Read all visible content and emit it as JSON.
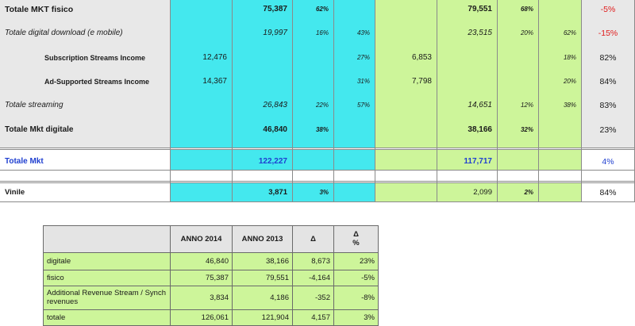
{
  "top_table": {
    "rows": [
      {
        "label": "Totale MKT fisico",
        "c1": "",
        "c2": "75,387",
        "c3": "62%",
        "c4": "",
        "c5": "",
        "c6": "79,551",
        "c7": "68%",
        "c8": "",
        "c9": "-5%"
      },
      {
        "label": "Totale digital download  (e mobile)",
        "c1": "",
        "c2": "19,997",
        "c3": "16%",
        "c4": "43%",
        "c5": "",
        "c6": "23,515",
        "c7": "20%",
        "c8": "62%",
        "c9": "-15%"
      },
      {
        "label": "Subscription Streams Income",
        "c1": "12,476",
        "c2": "",
        "c3": "",
        "c4": "27%",
        "c5": "6,853",
        "c6": "",
        "c7": "",
        "c8": "18%",
        "c9": "82%"
      },
      {
        "label": "Ad-Supported Streams Income",
        "c1": "14,367",
        "c2": "",
        "c3": "",
        "c4": "31%",
        "c5": "7,798",
        "c6": "",
        "c7": "",
        "c8": "20%",
        "c9": "84%"
      },
      {
        "label": "Totale streaming",
        "c1": "",
        "c2": "26,843",
        "c3": "22%",
        "c4": "57%",
        "c5": "",
        "c6": "14,651",
        "c7": "12%",
        "c8": "38%",
        "c9": "83%"
      },
      {
        "label": "Totale Mkt digitale",
        "c1": "",
        "c2": "46,840",
        "c3": "38%",
        "c4": "",
        "c5": "",
        "c6": "38,166",
        "c7": "32%",
        "c8": "",
        "c9": "23%"
      },
      {
        "label": "Totale Mkt",
        "c1": "",
        "c2": "122,227",
        "c3": "",
        "c4": "",
        "c5": "",
        "c6": "117,717",
        "c7": "",
        "c8": "",
        "c9": "4%"
      },
      {
        "label": "Vinile",
        "c1": "",
        "c2": "3,871",
        "c3": "3%",
        "c4": "",
        "c5": "",
        "c6": "2,099",
        "c7": "2%",
        "c8": "",
        "c9": "84%"
      }
    ]
  },
  "bottom_table": {
    "headers": [
      "",
      "ANNO 2014",
      "ANNO 2013",
      "Δ",
      "Δ\n%"
    ],
    "rows": [
      [
        "digitale",
        "46,840",
        "38,166",
        "8,673",
        "23%"
      ],
      [
        "fisico",
        "75,387",
        "79,551",
        "-4,164",
        "-5%"
      ],
      [
        "Additional Revenue Stream / Synch revenues",
        "3,834",
        "4,186",
        "-352",
        "-8%"
      ],
      [
        "totale",
        "126,061",
        "121,904",
        "4,157",
        "3%"
      ]
    ]
  },
  "colors": {
    "cyan": "#44e8ee",
    "green": "#cdf59a",
    "grey": "#e8e8e8",
    "negative": "#e01c1c",
    "total": "#1f3fd0"
  }
}
